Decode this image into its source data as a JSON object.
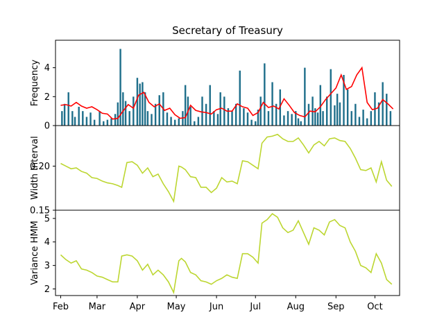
{
  "chart_data": {
    "type": "line",
    "title": "Secretary of Treasury",
    "x_ticks": [
      "Feb",
      "Mar",
      "Apr",
      "May",
      "Jun",
      "Jul",
      "Aug",
      "Sep",
      "Oct"
    ],
    "x_range": [
      "2023-01-28",
      "2023-10-20"
    ],
    "colors": {
      "bars": "#1f6f8b",
      "frequency_line": "#ff0000",
      "panel_line": "#bcd630"
    },
    "panels": [
      {
        "ylabel": "Frequency",
        "ylim": [
          0,
          5.9
        ],
        "yticks": [
          0,
          2,
          4
        ],
        "bars": {
          "dates": [
            "2023-02-02",
            "2023-02-04",
            "2023-02-07",
            "2023-02-10",
            "2023-02-12",
            "2023-02-15",
            "2023-02-18",
            "2023-02-21",
            "2023-02-24",
            "2023-02-27",
            "2023-03-03",
            "2023-03-06",
            "2023-03-09",
            "2023-03-12",
            "2023-03-15",
            "2023-03-17",
            "2023-03-19",
            "2023-03-21",
            "2023-03-23",
            "2023-03-26",
            "2023-03-29",
            "2023-04-01",
            "2023-04-03",
            "2023-04-05",
            "2023-04-07",
            "2023-04-09",
            "2023-04-12",
            "2023-04-15",
            "2023-04-18",
            "2023-04-21",
            "2023-04-24",
            "2023-04-27",
            "2023-04-30",
            "2023-05-03",
            "2023-05-06",
            "2023-05-08",
            "2023-05-10",
            "2023-05-12",
            "2023-05-15",
            "2023-05-18",
            "2023-05-21",
            "2023-05-24",
            "2023-05-27",
            "2023-05-30",
            "2023-06-02",
            "2023-06-04",
            "2023-06-07",
            "2023-06-10",
            "2023-06-13",
            "2023-06-16",
            "2023-06-19",
            "2023-06-22",
            "2023-06-25",
            "2023-06-28",
            "2023-07-01",
            "2023-07-03",
            "2023-07-05",
            "2023-07-08",
            "2023-07-11",
            "2023-07-14",
            "2023-07-17",
            "2023-07-20",
            "2023-07-23",
            "2023-07-26",
            "2023-07-29",
            "2023-08-01",
            "2023-08-03",
            "2023-08-05",
            "2023-08-08",
            "2023-08-11",
            "2023-08-14",
            "2023-08-16",
            "2023-08-18",
            "2023-08-20",
            "2023-08-22",
            "2023-08-25",
            "2023-08-28",
            "2023-08-31",
            "2023-09-02",
            "2023-09-04",
            "2023-09-07",
            "2023-09-10",
            "2023-09-13",
            "2023-09-16",
            "2023-09-19",
            "2023-09-22",
            "2023-09-25",
            "2023-09-28",
            "2023-10-01",
            "2023-10-04",
            "2023-10-07",
            "2023-10-10",
            "2023-10-13"
          ],
          "values": [
            1,
            1.5,
            2.3,
            1,
            0.6,
            1.3,
            1,
            0.6,
            0.9,
            0.4,
            1,
            0.3,
            0.4,
            0.5,
            0.8,
            1.6,
            5.3,
            2.3,
            1.7,
            1,
            2,
            3.3,
            2.9,
            3,
            2.3,
            1,
            0.8,
            1.5,
            2.1,
            2.3,
            0.9,
            0.6,
            0.4,
            0.5,
            1,
            2.8,
            2,
            1.3,
            0.3,
            0.6,
            2,
            1.5,
            2.8,
            1,
            0.8,
            2.3,
            2,
            1.2,
            1,
            1.5,
            3.8,
            1.2,
            0.9,
            0.4,
            0.3,
            1.1,
            2,
            4.3,
            1,
            3,
            1.5,
            2.5,
            0.7,
            1,
            0.8,
            1,
            0.5,
            0.3,
            4,
            1.5,
            2,
            1.2,
            0.9,
            2.8,
            1,
            2,
            3.9,
            1.4,
            2.2,
            1.6,
            3.5,
            2.5,
            1,
            1.5,
            0.6,
            1.1,
            0.5,
            1,
            2.3,
            1.6,
            3,
            2.2,
            1
          ]
        },
        "line": {
          "dates": [
            "2023-02-01",
            "2023-02-05",
            "2023-02-09",
            "2023-02-13",
            "2023-02-17",
            "2023-02-21",
            "2023-02-25",
            "2023-03-01",
            "2023-03-05",
            "2023-03-09",
            "2023-03-13",
            "2023-03-17",
            "2023-03-21",
            "2023-03-25",
            "2023-03-29",
            "2023-04-02",
            "2023-04-06",
            "2023-04-10",
            "2023-04-14",
            "2023-04-18",
            "2023-04-22",
            "2023-04-26",
            "2023-04-30",
            "2023-05-04",
            "2023-05-08",
            "2023-05-12",
            "2023-05-16",
            "2023-05-20",
            "2023-05-24",
            "2023-05-28",
            "2023-06-01",
            "2023-06-05",
            "2023-06-09",
            "2023-06-13",
            "2023-06-17",
            "2023-06-21",
            "2023-06-25",
            "2023-06-29",
            "2023-07-03",
            "2023-07-07",
            "2023-07-11",
            "2023-07-15",
            "2023-07-19",
            "2023-07-23",
            "2023-07-27",
            "2023-07-31",
            "2023-08-04",
            "2023-08-08",
            "2023-08-12",
            "2023-08-16",
            "2023-08-20",
            "2023-08-24",
            "2023-08-28",
            "2023-09-01",
            "2023-09-05",
            "2023-09-09",
            "2023-09-13",
            "2023-09-17",
            "2023-09-21",
            "2023-09-25",
            "2023-09-29",
            "2023-10-03",
            "2023-10-07",
            "2023-10-11",
            "2023-10-15"
          ],
          "values": [
            1.4,
            1.45,
            1.35,
            1.6,
            1.35,
            1.2,
            1.3,
            1.1,
            0.85,
            0.8,
            0.45,
            0.5,
            1.0,
            1.45,
            1.2,
            2.1,
            2.3,
            1.6,
            1.3,
            1.5,
            1.05,
            1.2,
            0.75,
            0.5,
            0.55,
            1.4,
            1.05,
            0.95,
            0.9,
            0.8,
            1.1,
            1.2,
            1.0,
            1.0,
            1.5,
            1.3,
            1.2,
            0.7,
            0.9,
            1.6,
            1.25,
            1.35,
            1.15,
            1.85,
            1.4,
            0.9,
            0.7,
            0.6,
            1.0,
            0.95,
            1.3,
            1.8,
            2.2,
            2.6,
            3.5,
            2.5,
            2.7,
            3.5,
            4.0,
            1.6,
            1.1,
            1.2,
            1.8,
            1.5,
            1.15
          ]
        }
      },
      {
        "ylabel": "Width Interval",
        "ylim": [
          0.15,
          0.246
        ],
        "yticks": [
          0.15,
          0.2
        ],
        "line": {
          "dates": [
            "2023-02-01",
            "2023-02-05",
            "2023-02-09",
            "2023-02-13",
            "2023-02-17",
            "2023-02-21",
            "2023-02-25",
            "2023-03-01",
            "2023-03-05",
            "2023-03-09",
            "2023-03-13",
            "2023-03-17",
            "2023-03-20",
            "2023-03-24",
            "2023-03-28",
            "2023-04-01",
            "2023-04-05",
            "2023-04-09",
            "2023-04-13",
            "2023-04-17",
            "2023-04-21",
            "2023-04-25",
            "2023-04-29",
            "2023-05-03",
            "2023-05-05",
            "2023-05-08",
            "2023-05-12",
            "2023-05-16",
            "2023-05-20",
            "2023-05-24",
            "2023-05-28",
            "2023-06-01",
            "2023-06-05",
            "2023-06-09",
            "2023-06-13",
            "2023-06-17",
            "2023-06-21",
            "2023-06-25",
            "2023-06-29",
            "2023-07-03",
            "2023-07-06",
            "2023-07-10",
            "2023-07-14",
            "2023-07-18",
            "2023-07-22",
            "2023-07-26",
            "2023-07-30",
            "2023-08-03",
            "2023-08-07",
            "2023-08-11",
            "2023-08-15",
            "2023-08-19",
            "2023-08-23",
            "2023-08-27",
            "2023-08-31",
            "2023-09-04",
            "2023-09-08",
            "2023-09-12",
            "2023-09-16",
            "2023-09-20",
            "2023-09-24",
            "2023-09-28",
            "2023-10-02",
            "2023-10-06",
            "2023-10-10",
            "2023-10-14"
          ],
          "values": [
            0.203,
            0.2,
            0.197,
            0.198,
            0.194,
            0.192,
            0.187,
            0.186,
            0.183,
            0.181,
            0.18,
            0.178,
            0.176,
            0.204,
            0.205,
            0.201,
            0.192,
            0.198,
            0.188,
            0.191,
            0.18,
            0.171,
            0.16,
            0.2,
            0.199,
            0.196,
            0.188,
            0.187,
            0.176,
            0.176,
            0.17,
            0.175,
            0.187,
            0.182,
            0.183,
            0.18,
            0.206,
            0.205,
            0.201,
            0.197,
            0.226,
            0.233,
            0.234,
            0.236,
            0.231,
            0.228,
            0.228,
            0.232,
            0.224,
            0.215,
            0.224,
            0.228,
            0.223,
            0.231,
            0.232,
            0.229,
            0.228,
            0.22,
            0.209,
            0.196,
            0.195,
            0.198,
            0.182,
            0.205,
            0.184,
            0.177
          ]
        }
      },
      {
        "ylabel": "Variance HMM",
        "ylim": [
          1.72,
          5.35
        ],
        "yticks": [
          2,
          3,
          4,
          5
        ],
        "line": {
          "dates": [
            "2023-02-01",
            "2023-02-05",
            "2023-02-09",
            "2023-02-13",
            "2023-02-17",
            "2023-02-21",
            "2023-02-25",
            "2023-03-01",
            "2023-03-05",
            "2023-03-09",
            "2023-03-13",
            "2023-03-17",
            "2023-03-20",
            "2023-03-24",
            "2023-03-28",
            "2023-04-01",
            "2023-04-05",
            "2023-04-09",
            "2023-04-13",
            "2023-04-17",
            "2023-04-21",
            "2023-04-25",
            "2023-04-29",
            "2023-05-03",
            "2023-05-05",
            "2023-05-08",
            "2023-05-12",
            "2023-05-16",
            "2023-05-20",
            "2023-05-24",
            "2023-05-28",
            "2023-06-01",
            "2023-06-05",
            "2023-06-09",
            "2023-06-13",
            "2023-06-17",
            "2023-06-21",
            "2023-06-25",
            "2023-06-29",
            "2023-07-03",
            "2023-07-06",
            "2023-07-10",
            "2023-07-14",
            "2023-07-18",
            "2023-07-22",
            "2023-07-26",
            "2023-07-30",
            "2023-08-03",
            "2023-08-07",
            "2023-08-11",
            "2023-08-15",
            "2023-08-19",
            "2023-08-23",
            "2023-08-27",
            "2023-08-31",
            "2023-09-04",
            "2023-09-08",
            "2023-09-12",
            "2023-09-16",
            "2023-09-20",
            "2023-09-24",
            "2023-09-28",
            "2023-10-02",
            "2023-10-06",
            "2023-10-10",
            "2023-10-14"
          ],
          "values": [
            3.45,
            3.25,
            3.1,
            3.2,
            2.85,
            2.8,
            2.7,
            2.55,
            2.5,
            2.4,
            2.3,
            2.3,
            3.4,
            3.45,
            3.4,
            3.2,
            2.8,
            3.05,
            2.6,
            2.8,
            2.6,
            2.3,
            1.85,
            3.2,
            3.3,
            3.15,
            2.7,
            2.6,
            2.35,
            2.3,
            2.2,
            2.35,
            2.45,
            2.6,
            2.5,
            2.45,
            3.5,
            3.5,
            3.35,
            3.1,
            4.8,
            4.95,
            5.2,
            5.05,
            4.6,
            4.4,
            4.5,
            4.9,
            4.4,
            3.9,
            4.6,
            4.5,
            4.3,
            4.85,
            4.95,
            4.7,
            4.6,
            4.0,
            3.6,
            3.0,
            2.9,
            2.7,
            3.5,
            3.1,
            2.4,
            2.2
          ]
        }
      }
    ]
  }
}
